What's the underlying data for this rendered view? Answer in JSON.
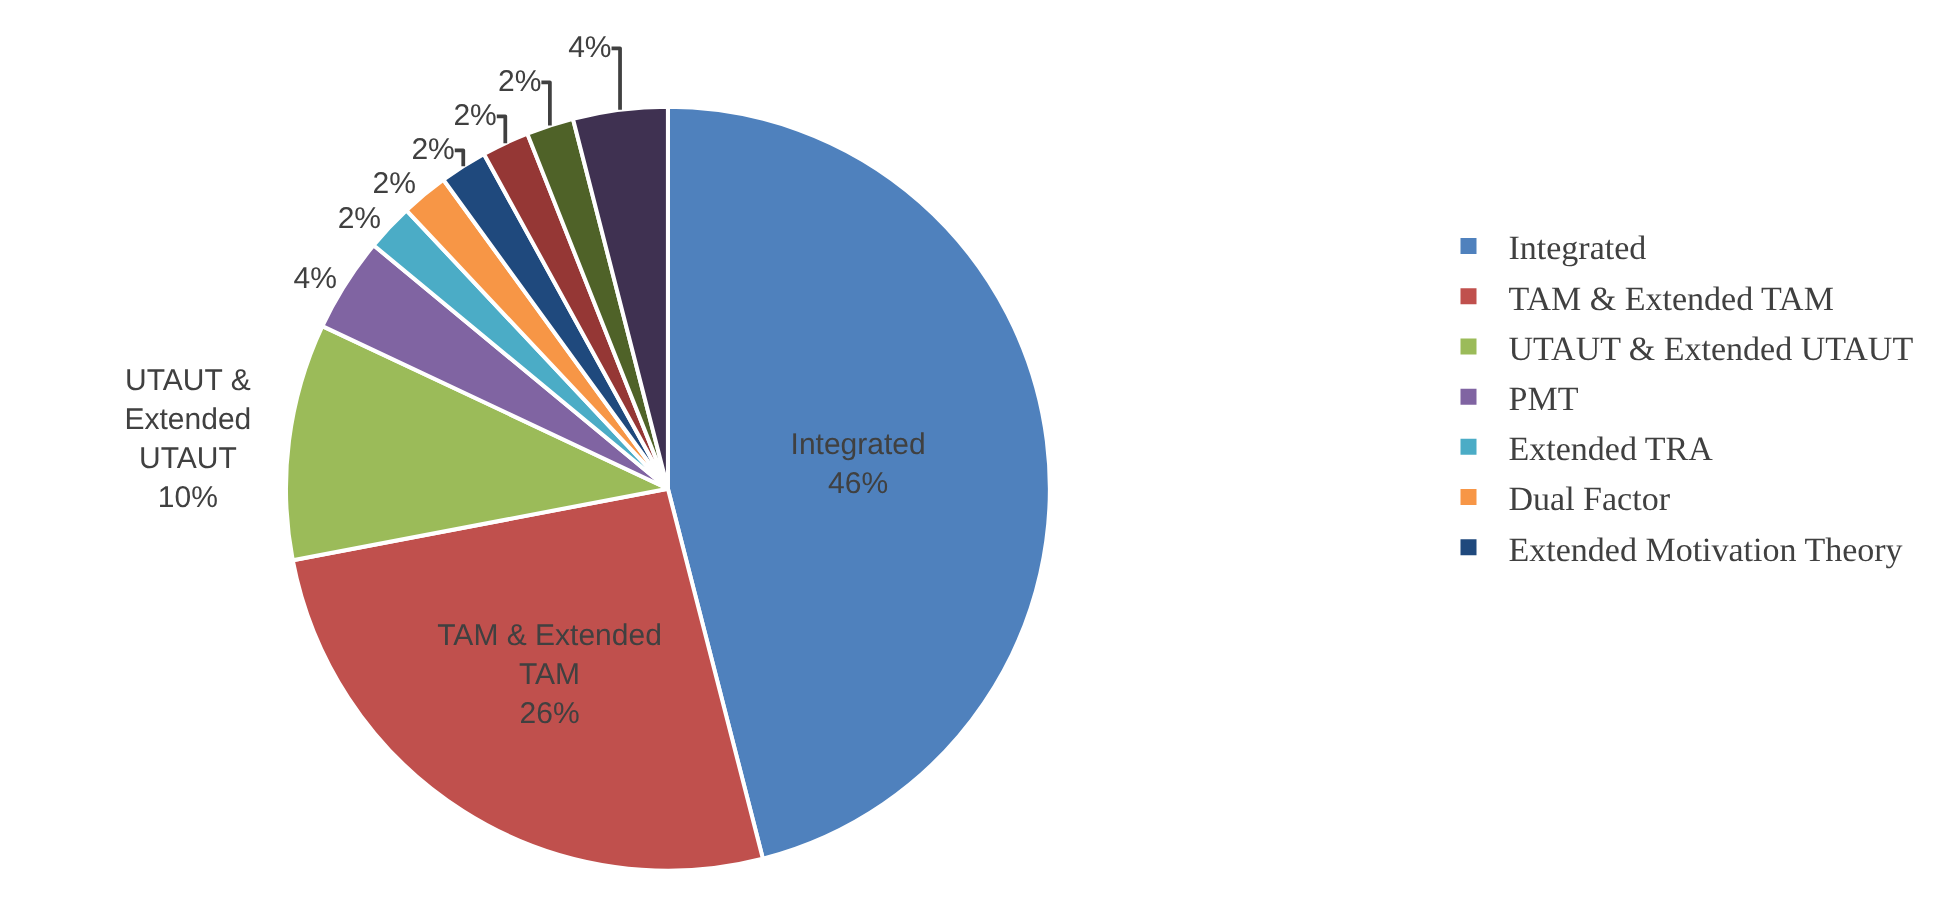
{
  "chart_data": {
    "type": "pie",
    "categories": [
      "Integrated",
      "TAM & Extended TAM",
      "UTAUT & Extended UTAUT",
      "PMT",
      "Extended TRA",
      "Dual Factor",
      "Extended Motivation Theory",
      null,
      null,
      null
    ],
    "values": [
      46,
      26,
      10,
      4,
      2,
      2,
      2,
      2,
      2,
      4
    ],
    "colors": [
      "#4f81bd",
      "#c0504d",
      "#9bbb59",
      "#8064a2",
      "#4bacc6",
      "#f79646",
      "#1f497d",
      "#953735",
      "#4f6228",
      "#3f3151"
    ],
    "value_labels": [
      "Integrated\n46%",
      "TAM & Extended\nTAM\n26%",
      "UTAUT &\nExtended\nUTAUT\n10%",
      "4%",
      "2%",
      "2%",
      "2%",
      "2%",
      "2%",
      "4%"
    ],
    "legend": "right"
  }
}
